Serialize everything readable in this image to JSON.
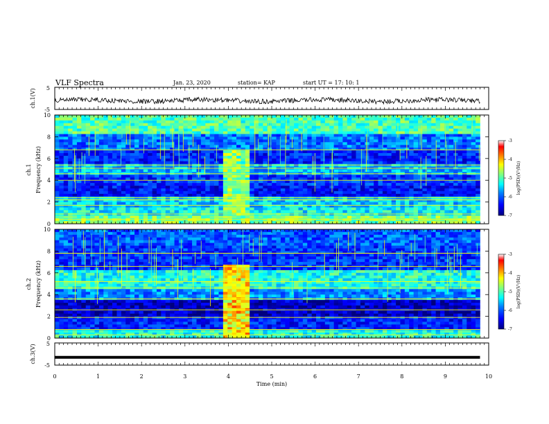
{
  "header": {
    "title": "VLF Spectra",
    "date": "Jan. 23, 2020",
    "station": "station= KAP",
    "start": "start  UT =   17: 10: 1"
  },
  "colors": {
    "colormap": [
      "#00007f",
      "#0000ff",
      "#0080ff",
      "#00ffff",
      "#80ff80",
      "#ffff00",
      "#ff8000",
      "#ff0000",
      "#ffffff"
    ],
    "waveform": "#000000"
  },
  "colorbar": {
    "label": "log(PSD)(V²/Hz)",
    "ticks": [
      "-3",
      "-4",
      "-5",
      "-6",
      "-7"
    ]
  },
  "chart_data": [
    {
      "type": "line",
      "panel": "ch1_waveform",
      "ylabel": "ch.1(V)",
      "yticks": [
        "5",
        "-5"
      ],
      "ylim": [
        -5,
        5
      ],
      "xlim": [
        0,
        10
      ],
      "description_values": "noisy waveform centred near -1 V, amplitude about ±1.5 V, x from 0 to 9.8 min"
    },
    {
      "type": "heatmap",
      "panel": "ch1_spectrogram",
      "ylabel": "ch.1\nFrequency (kHz)",
      "yticks": [
        "10",
        "8",
        "6",
        "4",
        "2",
        "0"
      ],
      "ylim": [
        0,
        10
      ],
      "xlim": [
        0,
        10
      ],
      "zlim": [
        -7,
        -3
      ],
      "bands_khz": [
        {
          "from": 0,
          "to": 0.8,
          "level": -4.8
        },
        {
          "from": 0.8,
          "to": 1.6,
          "level": -5.3
        },
        {
          "from": 1.6,
          "to": 2.6,
          "level": -5.5
        },
        {
          "from": 2.6,
          "to": 3.6,
          "level": -6.4
        },
        {
          "from": 3.6,
          "to": 4.6,
          "level": -6.2
        },
        {
          "from": 4.6,
          "to": 5.4,
          "level": -5.6
        },
        {
          "from": 5.4,
          "to": 6.8,
          "level": -6.3
        },
        {
          "from": 6.8,
          "to": 8.2,
          "level": -5.9
        },
        {
          "from": 8.2,
          "to": 10,
          "level": -5.0
        }
      ],
      "burst": {
        "t_start": 3.9,
        "t_end": 4.5,
        "level": -4.8
      },
      "lines_khz": [
        0.4,
        0.9,
        1.7,
        2.2,
        2.4,
        4.0,
        4.6,
        5.1,
        5.4,
        6.8
      ]
    },
    {
      "type": "heatmap",
      "panel": "ch2_spectrogram",
      "ylabel": "ch.2\nFrequency (kHz)",
      "yticks": [
        "10",
        "8",
        "6",
        "4",
        "2",
        "0"
      ],
      "ylim": [
        0,
        10
      ],
      "xlim": [
        0,
        10
      ],
      "zlim": [
        -7,
        -3
      ],
      "bands_khz": [
        {
          "from": 0,
          "to": 0.8,
          "level": -5.2
        },
        {
          "from": 0.8,
          "to": 2.0,
          "level": -6.3
        },
        {
          "from": 2.0,
          "to": 3.4,
          "level": -6.7
        },
        {
          "from": 3.4,
          "to": 4.6,
          "level": -5.8
        },
        {
          "from": 4.6,
          "to": 6.2,
          "level": -5.2
        },
        {
          "from": 6.2,
          "to": 8.4,
          "level": -6.2
        },
        {
          "from": 8.4,
          "to": 10,
          "level": -6.0
        }
      ],
      "burst": {
        "t_start": 3.9,
        "t_end": 4.5,
        "level": -4.2
      },
      "lines_khz": [
        0.3,
        0.8,
        1.9,
        2.6,
        3.6,
        4.6,
        5.2,
        6.6,
        7.8
      ]
    },
    {
      "type": "line",
      "panel": "ch3_waveform",
      "ylabel": "ch.3(V)",
      "yticks": [
        "5",
        "-5"
      ],
      "ylim": [
        -5,
        5
      ],
      "xlim": [
        0,
        10
      ],
      "values": {
        "x": [
          0,
          9.8
        ],
        "y": [
          -1.5,
          -1.5
        ]
      }
    }
  ],
  "xaxis": {
    "label": "Time (min)",
    "ticks": [
      "0",
      "1",
      "2",
      "3",
      "4",
      "5",
      "6",
      "7",
      "8",
      "9",
      "10"
    ]
  }
}
